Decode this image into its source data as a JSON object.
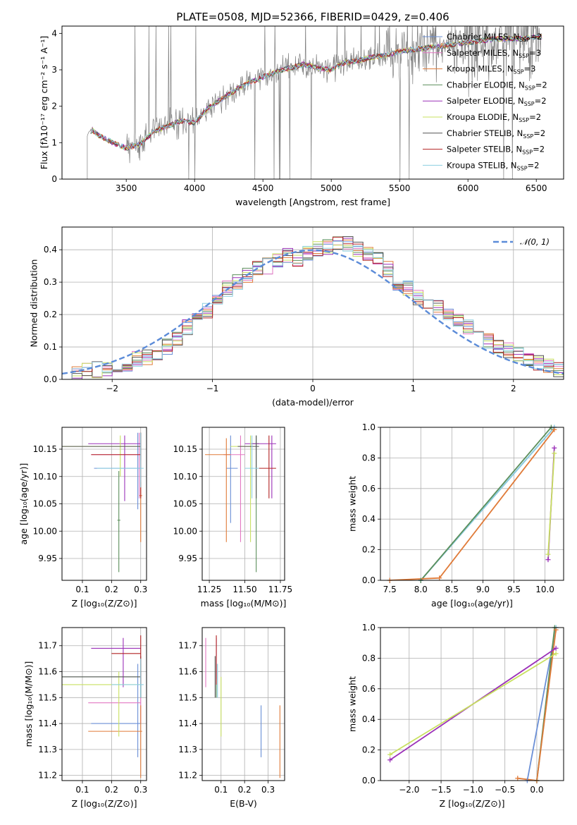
{
  "title": "PLATE=0508, MJD=52366, FIBERID=0429, z=0.406",
  "models": [
    {
      "name": "Chabrier MILES, N$SSP$=2",
      "label": "Chabrier MILES, N",
      "sub": "SSP",
      "tail": "=2",
      "color": "#6a8fd6"
    },
    {
      "name": "Salpeter MILES, N$SSP$=3",
      "label": "Salpeter MILES, N",
      "sub": "SSP",
      "tail": "=3",
      "color": "#e377c2"
    },
    {
      "name": "Kroupa MILES, N$SSP$=3",
      "label": "Kroupa MILES, N",
      "sub": "SSP",
      "tail": "=3",
      "color": "#e07b39"
    },
    {
      "name": "Chabrier ELODIE, N$SSP$=2",
      "label": "Chabrier ELODIE, N",
      "sub": "SSP",
      "tail": "=2",
      "color": "#5b8f5b"
    },
    {
      "name": "Salpeter ELODIE, N$SSP$=2",
      "label": "Salpeter ELODIE, N",
      "sub": "SSP",
      "tail": "=2",
      "color": "#9b30b8"
    },
    {
      "name": "Kroupa ELODIE, N$SSP$=2",
      "label": "Kroupa ELODIE, N",
      "sub": "SSP",
      "tail": "=2",
      "color": "#c8e060"
    },
    {
      "name": "Chabrier STELIB, N$SSP$=2",
      "label": "Chabrier STELIB, N",
      "sub": "SSP",
      "tail": "=2",
      "color": "#555555"
    },
    {
      "name": "Salpeter STELIB, N$SSP$=2",
      "label": "Salpeter STELIB, N",
      "sub": "SSP",
      "tail": "=2",
      "color": "#b22222"
    },
    {
      "name": "Kroupa STELIB, N$SSP$=2",
      "label": "Kroupa STELIB, N",
      "sub": "SSP",
      "tail": "=2",
      "color": "#8ccfe0"
    }
  ],
  "chart_data": [
    {
      "id": "spectrum",
      "type": "line",
      "xlabel": "wavelength [Angstrom, rest frame]",
      "ylabel": "Flux [fλ10⁻¹⁷ erg cm⁻² s⁻¹ A⁻¹]",
      "xlim": [
        3030,
        6700
      ],
      "ylim": [
        0,
        4.2
      ],
      "xticks": [
        3500,
        4000,
        4500,
        5000,
        5500,
        6000,
        6500
      ],
      "yticks": [
        0,
        1,
        2,
        3,
        4
      ],
      "grid": false,
      "legend": "right",
      "data_color": "#808080",
      "continuum": {
        "x": [
          3215,
          3250,
          3300,
          3400,
          3500,
          3600,
          3700,
          3800,
          3900,
          4000,
          4100,
          4200,
          4300,
          4400,
          4500,
          4600,
          4700,
          4800,
          4900,
          5000,
          5100,
          5200,
          5300,
          5400,
          5500,
          5600,
          5700,
          5800,
          5900,
          6000,
          6100,
          6200,
          6300,
          6400,
          6500
        ],
        "y": [
          1.25,
          1.35,
          1.2,
          1.0,
          0.85,
          0.95,
          1.3,
          1.45,
          1.6,
          1.55,
          1.95,
          2.2,
          2.45,
          2.65,
          2.8,
          2.95,
          3.05,
          3.15,
          3.05,
          3.0,
          3.2,
          3.25,
          3.35,
          3.4,
          3.5,
          3.55,
          3.6,
          3.65,
          3.7,
          3.75,
          3.8,
          3.85,
          3.85,
          3.85,
          3.9
        ]
      }
    },
    {
      "id": "residual-hist",
      "type": "line",
      "xlabel": "(data-model)/error",
      "ylabel": "Normed distribution",
      "xlim": [
        -2.5,
        2.5
      ],
      "ylim": [
        0,
        0.47
      ],
      "xticks": [
        -2,
        -1,
        0,
        1,
        2
      ],
      "yticks": [
        0.0,
        0.1,
        0.2,
        0.3,
        0.4
      ],
      "grid": true,
      "legend": "top-right",
      "reference": {
        "name": "𝒩(0, 1)",
        "color": "#5b8bd8"
      },
      "bins": [
        -2.5,
        -2.4,
        -2.3,
        -2.2,
        -2.1,
        -2.0,
        -1.9,
        -1.8,
        -1.7,
        -1.6,
        -1.5,
        -1.4,
        -1.3,
        -1.2,
        -1.1,
        -1.0,
        -0.9,
        -0.8,
        -0.7,
        -0.6,
        -0.5,
        -0.4,
        -0.3,
        -0.2,
        -0.1,
        0.0,
        0.1,
        0.2,
        0.3,
        0.4,
        0.5,
        0.6,
        0.7,
        0.8,
        0.9,
        1.0,
        1.1,
        1.2,
        1.3,
        1.4,
        1.5,
        1.6,
        1.7,
        1.8,
        1.9,
        2.0,
        2.1,
        2.2,
        2.3,
        2.4
      ],
      "base": [
        0.015,
        0.02,
        0.025,
        0.03,
        0.035,
        0.04,
        0.05,
        0.065,
        0.07,
        0.08,
        0.1,
        0.13,
        0.16,
        0.19,
        0.21,
        0.25,
        0.28,
        0.3,
        0.32,
        0.34,
        0.35,
        0.37,
        0.38,
        0.37,
        0.39,
        0.4,
        0.41,
        0.42,
        0.42,
        0.4,
        0.39,
        0.37,
        0.34,
        0.3,
        0.28,
        0.25,
        0.24,
        0.22,
        0.2,
        0.18,
        0.16,
        0.14,
        0.12,
        0.1,
        0.09,
        0.08,
        0.06,
        0.05,
        0.04,
        0.03
      ]
    },
    {
      "id": "age-vs-z",
      "type": "scatter",
      "xlabel": "Z [log₁₀(Z/Z⊙)]",
      "ylabel": "age  [log₁₀(age/yr)]",
      "xlim": [
        0.03,
        0.32
      ],
      "ylim": [
        9.91,
        10.19
      ],
      "xticks": [
        0.1,
        0.2,
        0.3
      ],
      "yticks": [
        9.95,
        10.0,
        10.05,
        10.1,
        10.15
      ],
      "grid": true,
      "points": [
        {
          "model": 0,
          "x": 0.29,
          "y": 10.115,
          "xerr": [
            0.14,
            0.3
          ],
          "yerr": [
            10.04,
            10.18
          ]
        },
        {
          "model": 1,
          "x": 0.295,
          "y": 10.14,
          "xerr": [
            0.13,
            0.3
          ],
          "yerr": [
            10.06,
            10.18
          ]
        },
        {
          "model": 2,
          "x": 0.3,
          "y": 10.065,
          "xerr": [
            0.295,
            0.305
          ],
          "yerr": [
            9.98,
            10.09
          ]
        },
        {
          "model": 3,
          "x": 0.225,
          "y": 10.02,
          "xerr": [
            0.22,
            0.23
          ],
          "yerr": [
            9.925,
            10.11
          ]
        },
        {
          "model": 4,
          "x": 0.245,
          "y": 10.16,
          "xerr": [
            0.12,
            0.3
          ],
          "yerr": [
            10.055,
            10.175
          ]
        },
        {
          "model": 5,
          "x": 0.23,
          "y": 10.155,
          "xerr": [
            0.03,
            0.3
          ],
          "yerr": [
            10.1,
            10.175
          ]
        },
        {
          "model": 6,
          "x": 0.3,
          "y": 10.155,
          "xerr": [
            0.03,
            0.3
          ],
          "yerr": [
            10.13,
            10.18
          ]
        },
        {
          "model": 7,
          "x": 0.3,
          "y": 10.14,
          "xerr": [
            0.13,
            0.3
          ],
          "yerr": [
            10.06,
            10.18
          ]
        },
        {
          "model": 8,
          "x": 0.3,
          "y": 10.115,
          "xerr": [
            0.15,
            0.31
          ],
          "yerr": [
            10.08,
            10.18
          ]
        }
      ]
    },
    {
      "id": "age-vs-mass",
      "type": "scatter",
      "xlabel": "mass [log₁₀(M/M⊙)]",
      "ylabel": "",
      "xlim": [
        11.2,
        11.78
      ],
      "ylim": [
        9.91,
        10.19
      ],
      "xticks": [
        11.25,
        11.5,
        11.75
      ],
      "yticks": [
        9.95,
        10.0,
        10.05,
        10.1,
        10.15
      ],
      "grid": true,
      "points": [
        {
          "model": 0,
          "x": 11.4,
          "y": 10.115,
          "xerr": [
            11.37,
            11.45
          ],
          "yerr": [
            10.015,
            10.175
          ]
        },
        {
          "model": 1,
          "x": 11.47,
          "y": 10.14,
          "xerr": [
            11.35,
            11.5
          ],
          "yerr": [
            9.98,
            10.175
          ]
        },
        {
          "model": 2,
          "x": 11.37,
          "y": 10.14,
          "xerr": [
            11.22,
            11.4
          ],
          "yerr": [
            9.98,
            10.17
          ]
        },
        {
          "model": 3,
          "x": 11.58,
          "y": 10.16,
          "xerr": [
            11.55,
            11.6
          ],
          "yerr": [
            9.925,
            10.175
          ]
        },
        {
          "model": 4,
          "x": 11.69,
          "y": 10.16,
          "xerr": [
            11.5,
            11.72
          ],
          "yerr": [
            10.06,
            10.175
          ]
        },
        {
          "model": 5,
          "x": 11.54,
          "y": 10.155,
          "xerr": [
            11.4,
            11.55
          ],
          "yerr": [
            9.98,
            10.175
          ]
        },
        {
          "model": 6,
          "x": 11.58,
          "y": 10.155,
          "xerr": [
            11.45,
            11.6
          ],
          "yerr": [
            10.06,
            10.175
          ]
        },
        {
          "model": 7,
          "x": 11.67,
          "y": 10.115,
          "xerr": [
            11.6,
            11.72
          ],
          "yerr": [
            10.06,
            10.175
          ]
        },
        {
          "model": 8,
          "x": 11.55,
          "y": 10.115,
          "xerr": [
            11.5,
            11.6
          ],
          "yerr": [
            10.06,
            10.175
          ]
        }
      ]
    },
    {
      "id": "weight-vs-age",
      "type": "line",
      "xlabel": "age  [log₁₀(age/yr)]",
      "ylabel": "mass weight",
      "xlim": [
        7.35,
        10.3
      ],
      "ylim": [
        0,
        1
      ],
      "xticks": [
        7.5,
        8.0,
        8.5,
        9.0,
        9.5,
        10.0
      ],
      "yticks": [
        0.0,
        0.2,
        0.4,
        0.6,
        0.8,
        1.0
      ],
      "grid": true,
      "series": [
        {
          "model": 0,
          "x": [
            8.0,
            10.15
          ],
          "y": [
            0.0,
            1.0
          ]
        },
        {
          "model": 8,
          "x": [
            8.0,
            10.15
          ],
          "y": [
            0.0,
            1.0
          ]
        },
        {
          "model": 3,
          "x": [
            8.0,
            10.1
          ],
          "y": [
            0.0,
            1.0
          ]
        },
        {
          "model": 2,
          "x": [
            7.5,
            8.3,
            10.15
          ],
          "y": [
            0.0,
            0.015,
            0.985
          ]
        },
        {
          "model": 4,
          "x": [
            10.05,
            10.15
          ],
          "y": [
            0.135,
            0.865
          ]
        },
        {
          "model": 5,
          "x": [
            10.05,
            10.15
          ],
          "y": [
            0.17,
            0.83
          ]
        }
      ]
    },
    {
      "id": "mass-vs-z",
      "type": "scatter",
      "xlabel": "Z [log₁₀(Z/Z⊙)]",
      "ylabel": "mass [log₁₀(M/M⊙)]",
      "xlim": [
        0.03,
        0.32
      ],
      "ylim": [
        11.18,
        11.77
      ],
      "xticks": [
        0.1,
        0.2,
        0.3
      ],
      "yticks": [
        11.2,
        11.3,
        11.4,
        11.5,
        11.6,
        11.7
      ],
      "grid": true,
      "points": [
        {
          "model": 0,
          "x": 0.29,
          "y": 11.4,
          "xerr": [
            0.13,
            0.3
          ],
          "yerr": [
            11.27,
            11.63
          ]
        },
        {
          "model": 1,
          "x": 0.3,
          "y": 11.48,
          "xerr": [
            0.12,
            0.3
          ],
          "yerr": [
            11.4,
            11.6
          ]
        },
        {
          "model": 2,
          "x": 0.3,
          "y": 11.37,
          "xerr": [
            0.12,
            0.305
          ],
          "yerr": [
            11.19,
            11.47
          ]
        },
        {
          "model": 3,
          "x": 0.3,
          "y": 11.58,
          "xerr": [
            0.03,
            0.3
          ],
          "yerr": [
            11.5,
            11.63
          ]
        },
        {
          "model": 4,
          "x": 0.24,
          "y": 11.69,
          "xerr": [
            0.13,
            0.3
          ],
          "yerr": [
            11.54,
            11.73
          ]
        },
        {
          "model": 5,
          "x": 0.225,
          "y": 11.55,
          "xerr": [
            0.03,
            0.3
          ],
          "yerr": [
            11.35,
            11.6
          ]
        },
        {
          "model": 6,
          "x": 0.3,
          "y": 11.58,
          "xerr": [
            0.03,
            0.3
          ],
          "yerr": [
            11.5,
            11.66
          ]
        },
        {
          "model": 7,
          "x": 0.3,
          "y": 11.67,
          "xerr": [
            0.2,
            0.3
          ],
          "yerr": [
            11.55,
            11.74
          ]
        },
        {
          "model": 8,
          "x": 0.3,
          "y": 11.55,
          "xerr": [
            0.2,
            0.31
          ],
          "yerr": [
            11.5,
            11.65
          ]
        }
      ]
    },
    {
      "id": "mass-vs-ebv",
      "type": "scatter",
      "xlabel": "E(B-V)",
      "ylabel": "",
      "xlim": [
        0.02,
        0.37
      ],
      "ylim": [
        11.18,
        11.77
      ],
      "xticks": [
        0.1,
        0.2,
        0.3
      ],
      "yticks": [
        11.2,
        11.3,
        11.4,
        11.5,
        11.6,
        11.7
      ],
      "grid": true,
      "points": [
        {
          "model": 0,
          "x": 0.27,
          "y": 11.4,
          "xerr": [
            0.27,
            0.27
          ],
          "yerr": [
            11.27,
            11.47
          ]
        },
        {
          "model": 1,
          "x": 0.035,
          "y": 11.65,
          "xerr": [
            0.035,
            0.035
          ],
          "yerr": [
            11.54,
            11.73
          ]
        },
        {
          "model": 2,
          "x": 0.35,
          "y": 11.37,
          "xerr": [
            0.35,
            0.35
          ],
          "yerr": [
            11.19,
            11.47
          ]
        },
        {
          "model": 3,
          "x": 0.08,
          "y": 11.58,
          "xerr": [
            0.08,
            0.08
          ],
          "yerr": [
            11.5,
            11.63
          ]
        },
        {
          "model": 4,
          "x": 0.08,
          "y": 11.65,
          "xerr": [
            0.08,
            0.08
          ],
          "yerr": [
            11.57,
            11.73
          ]
        },
        {
          "model": 5,
          "x": 0.1,
          "y": 11.55,
          "xerr": [
            0.1,
            0.1
          ],
          "yerr": [
            11.35,
            11.58
          ]
        },
        {
          "model": 6,
          "x": 0.075,
          "y": 11.6,
          "xerr": [
            0.075,
            0.075
          ],
          "yerr": [
            11.5,
            11.66
          ]
        },
        {
          "model": 7,
          "x": 0.08,
          "y": 11.65,
          "xerr": [
            0.08,
            0.08
          ],
          "yerr": [
            11.55,
            11.74
          ]
        },
        {
          "model": 8,
          "x": 0.085,
          "y": 11.55,
          "xerr": [
            0.085,
            0.085
          ],
          "yerr": [
            11.5,
            11.63
          ]
        }
      ]
    },
    {
      "id": "weight-vs-z",
      "type": "line",
      "xlabel": "Z [log₁₀(Z/Z⊙)]",
      "ylabel": "mass weight",
      "xlim": [
        -2.45,
        0.42
      ],
      "ylim": [
        0,
        1
      ],
      "xticks": [
        -2.0,
        -1.5,
        -1.0,
        -0.5,
        0.0
      ],
      "yticks": [
        0.0,
        0.2,
        0.4,
        0.6,
        0.8,
        1.0
      ],
      "grid": true,
      "series": [
        {
          "model": 0,
          "x": [
            -0.15,
            0.3
          ],
          "y": [
            0.0,
            1.0
          ]
        },
        {
          "model": 8,
          "x": [
            0.0,
            0.3
          ],
          "y": [
            0.0,
            1.0
          ]
        },
        {
          "model": 3,
          "x": [
            0.0,
            0.28
          ],
          "y": [
            0.0,
            1.0
          ]
        },
        {
          "model": 2,
          "x": [
            -0.3,
            0.0,
            0.3
          ],
          "y": [
            0.015,
            0.0,
            0.985
          ]
        },
        {
          "model": 4,
          "x": [
            -2.3,
            0.3
          ],
          "y": [
            0.135,
            0.865
          ]
        },
        {
          "model": 5,
          "x": [
            -2.3,
            0.3
          ],
          "y": [
            0.17,
            0.83
          ]
        }
      ]
    }
  ]
}
